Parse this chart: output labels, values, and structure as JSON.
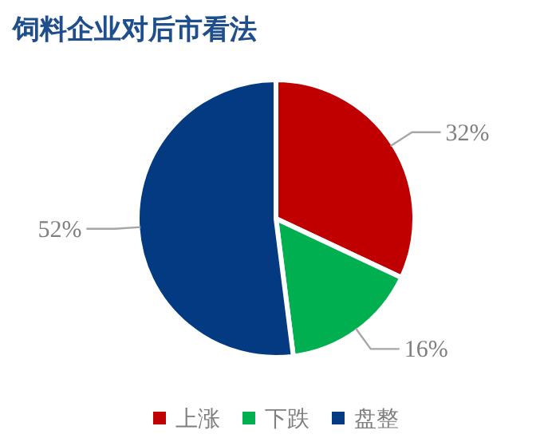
{
  "chart_data": {
    "type": "pie",
    "title": "饲料企业对后市看法",
    "categories": [
      "上涨",
      "下跌",
      "盘整"
    ],
    "values": [
      32,
      16,
      52
    ],
    "value_labels": [
      "32%",
      "16%",
      "52%"
    ],
    "colors": [
      "#c00000",
      "#00b050",
      "#043a82"
    ],
    "legend": "bottom"
  }
}
